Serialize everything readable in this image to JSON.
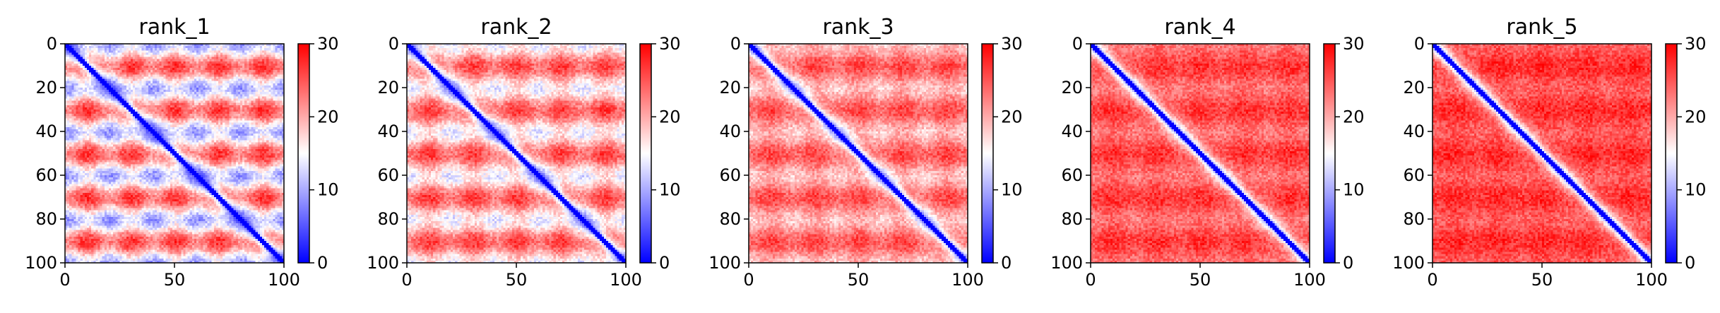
{
  "chart_data": [
    {
      "type": "heatmap",
      "title": "rank_1",
      "x_ticks": [
        "0",
        "50",
        "100"
      ],
      "y_ticks": [
        "0",
        "20",
        "40",
        "60",
        "80",
        "100"
      ],
      "colorbar_ticks": [
        "0",
        "10",
        "20",
        "30"
      ],
      "vmin": 0,
      "vmax": 30,
      "xlim": [
        0,
        100
      ],
      "ylim": [
        0,
        100
      ],
      "band_strength": 0.95,
      "off_diagonal_level": 18
    },
    {
      "type": "heatmap",
      "title": "rank_2",
      "x_ticks": [
        "0",
        "50",
        "100"
      ],
      "y_ticks": [
        "0",
        "20",
        "40",
        "60",
        "80",
        "100"
      ],
      "colorbar_ticks": [
        "0",
        "10",
        "20",
        "30"
      ],
      "vmin": 0,
      "vmax": 30,
      "xlim": [
        0,
        100
      ],
      "ylim": [
        0,
        100
      ],
      "band_strength": 0.7,
      "off_diagonal_level": 20
    },
    {
      "type": "heatmap",
      "title": "rank_3",
      "x_ticks": [
        "0",
        "50",
        "100"
      ],
      "y_ticks": [
        "0",
        "20",
        "40",
        "60",
        "80",
        "100"
      ],
      "colorbar_ticks": [
        "0",
        "10",
        "20",
        "30"
      ],
      "vmin": 0,
      "vmax": 30,
      "xlim": [
        0,
        100
      ],
      "ylim": [
        0,
        100
      ],
      "band_strength": 0.45,
      "off_diagonal_level": 22
    },
    {
      "type": "heatmap",
      "title": "rank_4",
      "x_ticks": [
        "0",
        "50",
        "100"
      ],
      "y_ticks": [
        "0",
        "20",
        "40",
        "60",
        "80",
        "100"
      ],
      "colorbar_ticks": [
        "0",
        "10",
        "20",
        "30"
      ],
      "vmin": 0,
      "vmax": 30,
      "xlim": [
        0,
        100
      ],
      "ylim": [
        0,
        100
      ],
      "band_strength": 0.25,
      "off_diagonal_level": 25
    },
    {
      "type": "heatmap",
      "title": "rank_5",
      "x_ticks": [
        "0",
        "50",
        "100"
      ],
      "y_ticks": [
        "0",
        "20",
        "40",
        "60",
        "80",
        "100"
      ],
      "colorbar_ticks": [
        "0",
        "10",
        "20",
        "30"
      ],
      "vmin": 0,
      "vmax": 30,
      "xlim": [
        0,
        100
      ],
      "ylim": [
        0,
        100
      ],
      "band_strength": 0.2,
      "off_diagonal_level": 26
    }
  ],
  "colors": {
    "low": "#0000ff",
    "mid": "#ffffff",
    "high": "#ff0000"
  }
}
